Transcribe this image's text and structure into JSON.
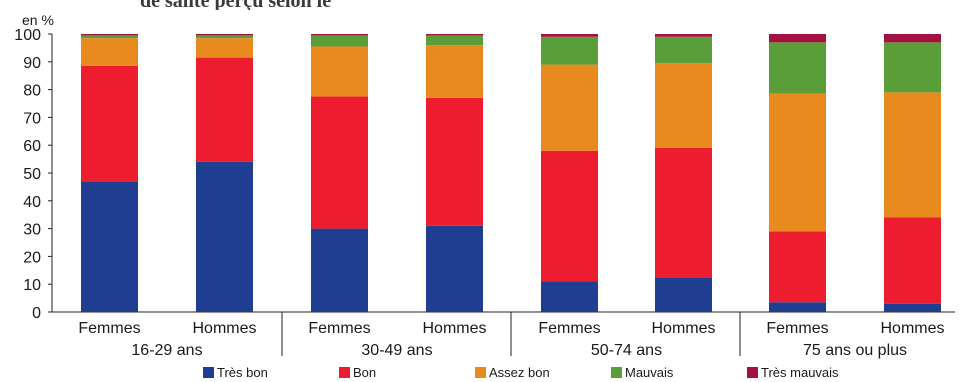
{
  "header_fragment": "de santé perçu selon le genre et l'âge",
  "chart_data": {
    "type": "bar",
    "stacked": true,
    "title": "",
    "ylabel": "en %",
    "xlabel": "",
    "ylim": [
      0,
      100
    ],
    "yticks": [
      0,
      10,
      20,
      30,
      40,
      50,
      60,
      70,
      80,
      90,
      100
    ],
    "grid": false,
    "legend_position": "bottom",
    "categories": [
      "Femmes",
      "Hommes",
      "Femmes",
      "Hommes",
      "Femmes",
      "Hommes",
      "Femmes",
      "Hommes"
    ],
    "groups": [
      {
        "label": "16-29 ans",
        "bars": 2
      },
      {
        "label": "30-49 ans",
        "bars": 2
      },
      {
        "label": "50-74 ans",
        "bars": 2
      },
      {
        "label": "75 ans ou plus",
        "bars": 2
      }
    ],
    "series": [
      {
        "name": "Très bon",
        "color": "#1f3d91",
        "values": [
          47,
          54,
          30,
          31,
          11,
          12.5,
          3.5,
          3
        ]
      },
      {
        "name": "Bon",
        "color": "#ed1c2e",
        "values": [
          41.5,
          37.5,
          47.5,
          46,
          47,
          46.5,
          25.5,
          31
        ]
      },
      {
        "name": "Assez bon",
        "color": "#e98a1f",
        "values": [
          10,
          7,
          18,
          19,
          31,
          30.5,
          49.5,
          45
        ]
      },
      {
        "name": "Mauvais",
        "color": "#5a9e3a",
        "values": [
          1,
          1,
          4,
          3.5,
          10,
          9.5,
          18.5,
          18
        ]
      },
      {
        "name": "Très mauvais",
        "color": "#a3123f",
        "values": [
          0.5,
          0.5,
          0.5,
          0.5,
          1,
          1,
          3,
          3
        ]
      }
    ]
  }
}
